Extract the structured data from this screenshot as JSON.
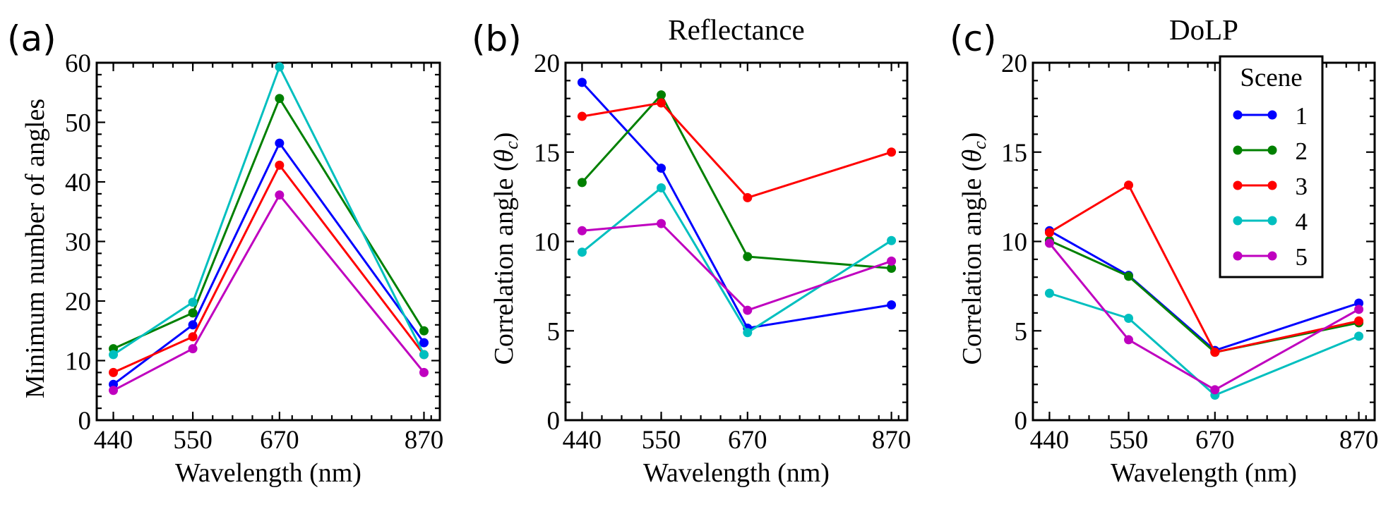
{
  "colors": {
    "scene_1": "#0000ff",
    "scene_2": "#008000",
    "scene_3": "#ff0000",
    "scene_4": "#00bfbf",
    "scene_5": "#bf00bf",
    "axis": "#000000"
  },
  "chart_data": [
    {
      "type": "line",
      "panel_label": "(a)",
      "title": "",
      "xlabel": "Wavelength (nm)",
      "ylabel": "Minimum number of angles",
      "x": [
        440,
        550,
        670,
        870
      ],
      "xticks": [
        440,
        550,
        670,
        870
      ],
      "xtick_labels": [
        "440",
        "550",
        "670",
        "870"
      ],
      "xlim": [
        417,
        892
      ],
      "ylim": [
        0,
        60
      ],
      "yticks": [
        0,
        10,
        20,
        30,
        40,
        50,
        60
      ],
      "ytick_labels": [
        "0",
        "10",
        "20",
        "30",
        "40",
        "50",
        "60"
      ],
      "y_minor_step": 2,
      "grid": false,
      "legend": null,
      "series": [
        {
          "name": "1",
          "values": [
            6,
            16,
            46.5,
            13
          ]
        },
        {
          "name": "2",
          "values": [
            12,
            18,
            54,
            15
          ]
        },
        {
          "name": "3",
          "values": [
            8,
            14,
            42.8,
            11
          ]
        },
        {
          "name": "4",
          "values": [
            11,
            19.8,
            59.3,
            11
          ]
        },
        {
          "name": "5",
          "values": [
            5,
            12,
            37.8,
            8
          ]
        }
      ]
    },
    {
      "type": "line",
      "panel_label": "(b)",
      "title": "Reflectance",
      "xlabel": "Wavelength (nm)",
      "ylabel_main": "Correlation angle (",
      "ylabel_symbol": "θ",
      "ylabel_sub": "c",
      "ylabel_end": ")",
      "x": [
        440,
        550,
        670,
        870
      ],
      "xticks": [
        440,
        550,
        670,
        870
      ],
      "xtick_labels": [
        "440",
        "550",
        "670",
        "870"
      ],
      "xlim": [
        417,
        892
      ],
      "ylim": [
        0,
        20
      ],
      "yticks": [
        0,
        5,
        10,
        15,
        20
      ],
      "ytick_labels": [
        "0",
        "5",
        "10",
        "15",
        "20"
      ],
      "y_minor_step": 1,
      "grid": false,
      "legend": null,
      "series": [
        {
          "name": "1",
          "values": [
            18.9,
            14.1,
            5.15,
            6.45
          ]
        },
        {
          "name": "2",
          "values": [
            13.3,
            18.2,
            9.15,
            8.5
          ]
        },
        {
          "name": "3",
          "values": [
            17.0,
            17.75,
            12.45,
            15.0
          ]
        },
        {
          "name": "4",
          "values": [
            9.4,
            13.0,
            4.9,
            10.05
          ]
        },
        {
          "name": "5",
          "values": [
            10.6,
            11.0,
            6.15,
            8.9
          ]
        }
      ]
    },
    {
      "type": "line",
      "panel_label": "(c)",
      "title": "DoLP",
      "xlabel": "Wavelength (nm)",
      "ylabel_main": "Correlation angle (",
      "ylabel_symbol": "θ",
      "ylabel_sub": "c",
      "ylabel_end": ")",
      "x": [
        440,
        550,
        670,
        870
      ],
      "xticks": [
        440,
        550,
        670,
        870
      ],
      "xtick_labels": [
        "440",
        "550",
        "670",
        "870"
      ],
      "xlim": [
        417,
        892
      ],
      "ylim": [
        0,
        20
      ],
      "yticks": [
        0,
        5,
        10,
        15,
        20
      ],
      "ytick_labels": [
        "0",
        "5",
        "10",
        "15",
        "20"
      ],
      "y_minor_step": 1,
      "grid": false,
      "legend": {
        "title": "Scene",
        "placement": "top-right",
        "entries": [
          "1",
          "2",
          "3",
          "4",
          "5"
        ]
      },
      "series": [
        {
          "name": "1",
          "values": [
            10.6,
            8.1,
            3.9,
            6.55
          ]
        },
        {
          "name": "2",
          "values": [
            10.05,
            8.05,
            3.8,
            5.45
          ]
        },
        {
          "name": "3",
          "values": [
            10.5,
            13.15,
            3.8,
            5.55
          ]
        },
        {
          "name": "4",
          "values": [
            7.1,
            5.7,
            1.4,
            4.7
          ]
        },
        {
          "name": "5",
          "values": [
            9.9,
            4.5,
            1.7,
            6.2
          ]
        }
      ]
    }
  ]
}
